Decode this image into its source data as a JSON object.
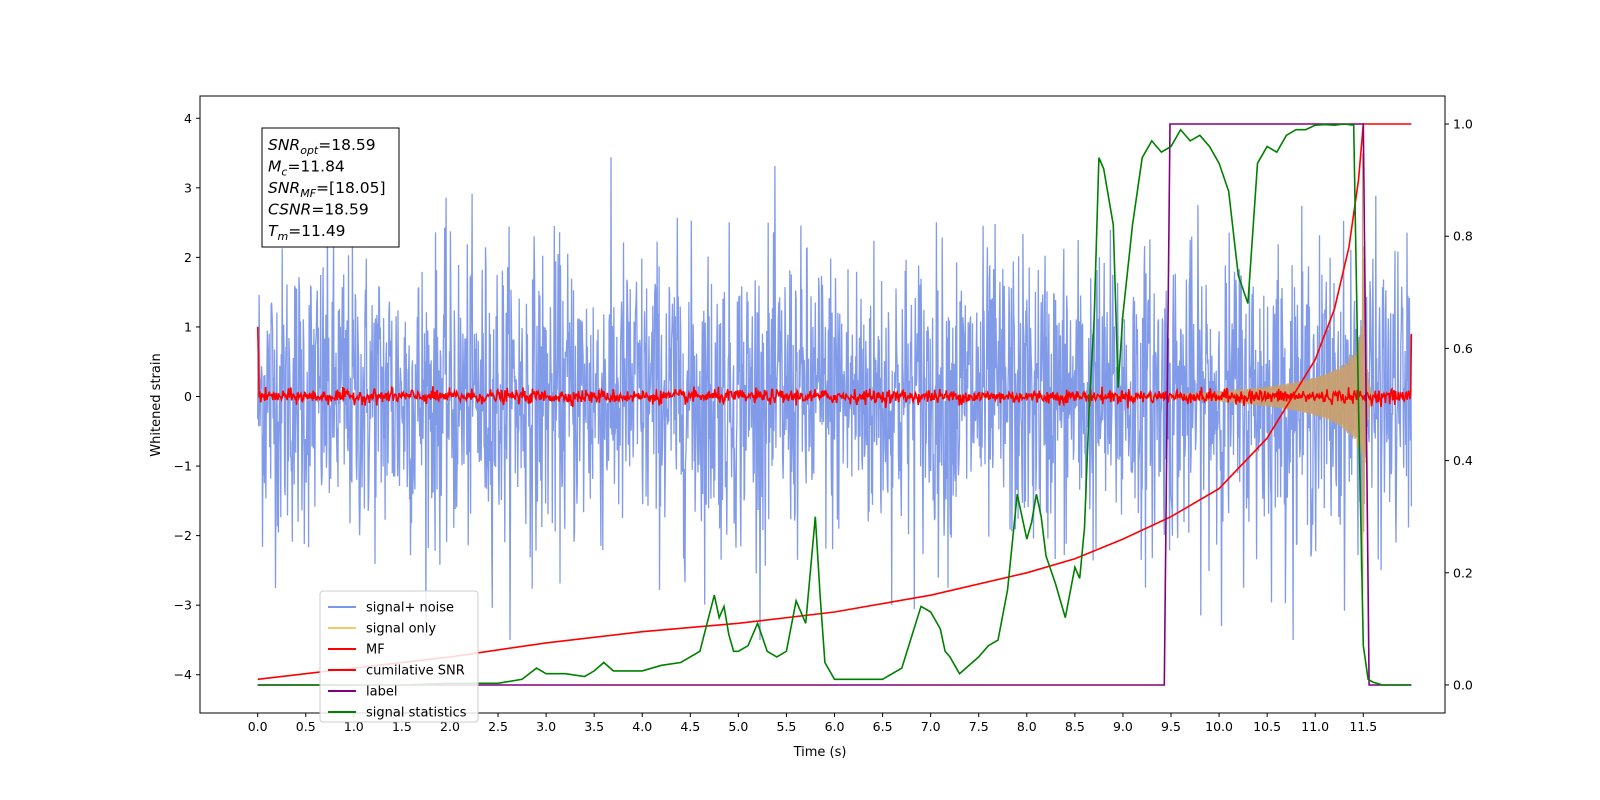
{
  "chart_data": {
    "type": "line",
    "xlabel": "Time (s)",
    "ylabel": "Whitened strain",
    "xlim": [
      -0.6,
      12.35
    ],
    "ylim": [
      -4.55,
      4.32
    ],
    "y2lim": [
      -0.05,
      1.05
    ],
    "x_ticks": [
      "0.0",
      "0.5",
      "1.0",
      "1.5",
      "2.0",
      "2.5",
      "3.0",
      "3.5",
      "4.0",
      "4.5",
      "5.0",
      "5.5",
      "6.0",
      "6.5",
      "7.0",
      "7.5",
      "8.0",
      "8.5",
      "9.0",
      "9.5",
      "10.0",
      "10.5",
      "11.0",
      "11.5"
    ],
    "y_ticks": [
      "4",
      "3",
      "2",
      "1",
      "0",
      "−1",
      "−2",
      "−3",
      "−4"
    ],
    "y2_ticks": [
      "1.0",
      "0.8",
      "0.6",
      "0.4",
      "0.2",
      "0.0"
    ],
    "info_box": [
      {
        "name": "SNR",
        "sub": "opt",
        "value": "=18.59"
      },
      {
        "name": "M",
        "sub": "c",
        "value": "=11.84"
      },
      {
        "name": "SNR",
        "sub": "MF",
        "value": "=[18.05]"
      },
      {
        "name": "CSNR",
        "sub": "",
        "value": "=18.59"
      },
      {
        "name": "T",
        "sub": "m",
        "value": "=11.49"
      }
    ],
    "legend_position": "lower-left",
    "series": [
      {
        "name": "signal+ noise",
        "axis": "left",
        "color": "#7b96e8",
        "noise_std": 1.0,
        "x_range": [
          0.0,
          12.0
        ]
      },
      {
        "name": "signal only",
        "axis": "left",
        "color": "#f5c96b",
        "merger_time": 11.49,
        "peak_amplitude": 3.8
      },
      {
        "name": "MF",
        "axis": "left",
        "color": "#ff0000",
        "baseline": 0.0,
        "noise_std": 0.05
      },
      {
        "name": "cumilative SNR",
        "axis": "right",
        "color": "#ff0000",
        "x": [
          0.0,
          1.0,
          2.0,
          3.0,
          4.0,
          5.0,
          6.0,
          7.0,
          8.0,
          8.5,
          9.0,
          9.5,
          10.0,
          10.5,
          11.0,
          11.2,
          11.35,
          11.45,
          11.5,
          11.6,
          12.0
        ],
        "y": [
          0.01,
          0.03,
          0.05,
          0.075,
          0.095,
          0.11,
          0.13,
          0.16,
          0.2,
          0.225,
          0.26,
          0.3,
          0.35,
          0.44,
          0.58,
          0.67,
          0.78,
          0.9,
          1.0,
          1.0,
          1.0
        ]
      },
      {
        "name": "label",
        "axis": "right",
        "color": "#800080",
        "x": [
          0.0,
          9.43,
          9.49,
          11.5,
          11.56,
          12.0
        ],
        "y": [
          0.0,
          0.0,
          1.0,
          1.0,
          0.0,
          0.0
        ]
      },
      {
        "name": "signal statistics",
        "axis": "right",
        "color": "#008000",
        "x": [
          0.0,
          0.5,
          1.0,
          1.5,
          2.0,
          2.5,
          2.75,
          2.9,
          3.0,
          3.2,
          3.4,
          3.5,
          3.6,
          3.7,
          4.0,
          4.2,
          4.4,
          4.6,
          4.75,
          4.8,
          4.85,
          4.9,
          4.95,
          5.0,
          5.1,
          5.2,
          5.3,
          5.4,
          5.5,
          5.6,
          5.7,
          5.8,
          5.85,
          5.9,
          6.0,
          6.1,
          6.3,
          6.5,
          6.7,
          6.9,
          7.0,
          7.1,
          7.15,
          7.2,
          7.3,
          7.5,
          7.6,
          7.7,
          7.8,
          7.9,
          8.0,
          8.05,
          8.1,
          8.15,
          8.2,
          8.3,
          8.4,
          8.5,
          8.55,
          8.6,
          8.65,
          8.7,
          8.75,
          8.8,
          8.9,
          8.95,
          9.0,
          9.1,
          9.2,
          9.3,
          9.4,
          9.5,
          9.6,
          9.7,
          9.8,
          9.9,
          10.0,
          10.1,
          10.2,
          10.3,
          10.4,
          10.5,
          10.6,
          10.7,
          10.8,
          10.9,
          11.0,
          11.1,
          11.2,
          11.3,
          11.4,
          11.45,
          11.5,
          11.55,
          11.6,
          11.7,
          12.0
        ],
        "y": [
          0.0,
          0.0,
          0.0,
          0.0,
          0.003,
          0.003,
          0.01,
          0.03,
          0.02,
          0.02,
          0.015,
          0.025,
          0.04,
          0.025,
          0.025,
          0.035,
          0.04,
          0.06,
          0.16,
          0.12,
          0.14,
          0.09,
          0.06,
          0.06,
          0.07,
          0.11,
          0.06,
          0.05,
          0.06,
          0.15,
          0.11,
          0.3,
          0.16,
          0.04,
          0.01,
          0.01,
          0.01,
          0.01,
          0.03,
          0.14,
          0.13,
          0.1,
          0.06,
          0.05,
          0.02,
          0.05,
          0.07,
          0.08,
          0.17,
          0.34,
          0.26,
          0.29,
          0.34,
          0.3,
          0.23,
          0.18,
          0.12,
          0.21,
          0.19,
          0.28,
          0.5,
          0.65,
          0.94,
          0.92,
          0.82,
          0.53,
          0.66,
          0.82,
          0.94,
          0.97,
          0.95,
          0.96,
          0.99,
          0.97,
          0.98,
          0.96,
          0.93,
          0.88,
          0.73,
          0.68,
          0.93,
          0.96,
          0.95,
          0.98,
          0.99,
          0.99,
          0.998,
          0.999,
          0.998,
          1.0,
          0.998,
          0.5,
          0.07,
          0.01,
          0.005,
          0.0,
          0.0
        ]
      }
    ]
  }
}
